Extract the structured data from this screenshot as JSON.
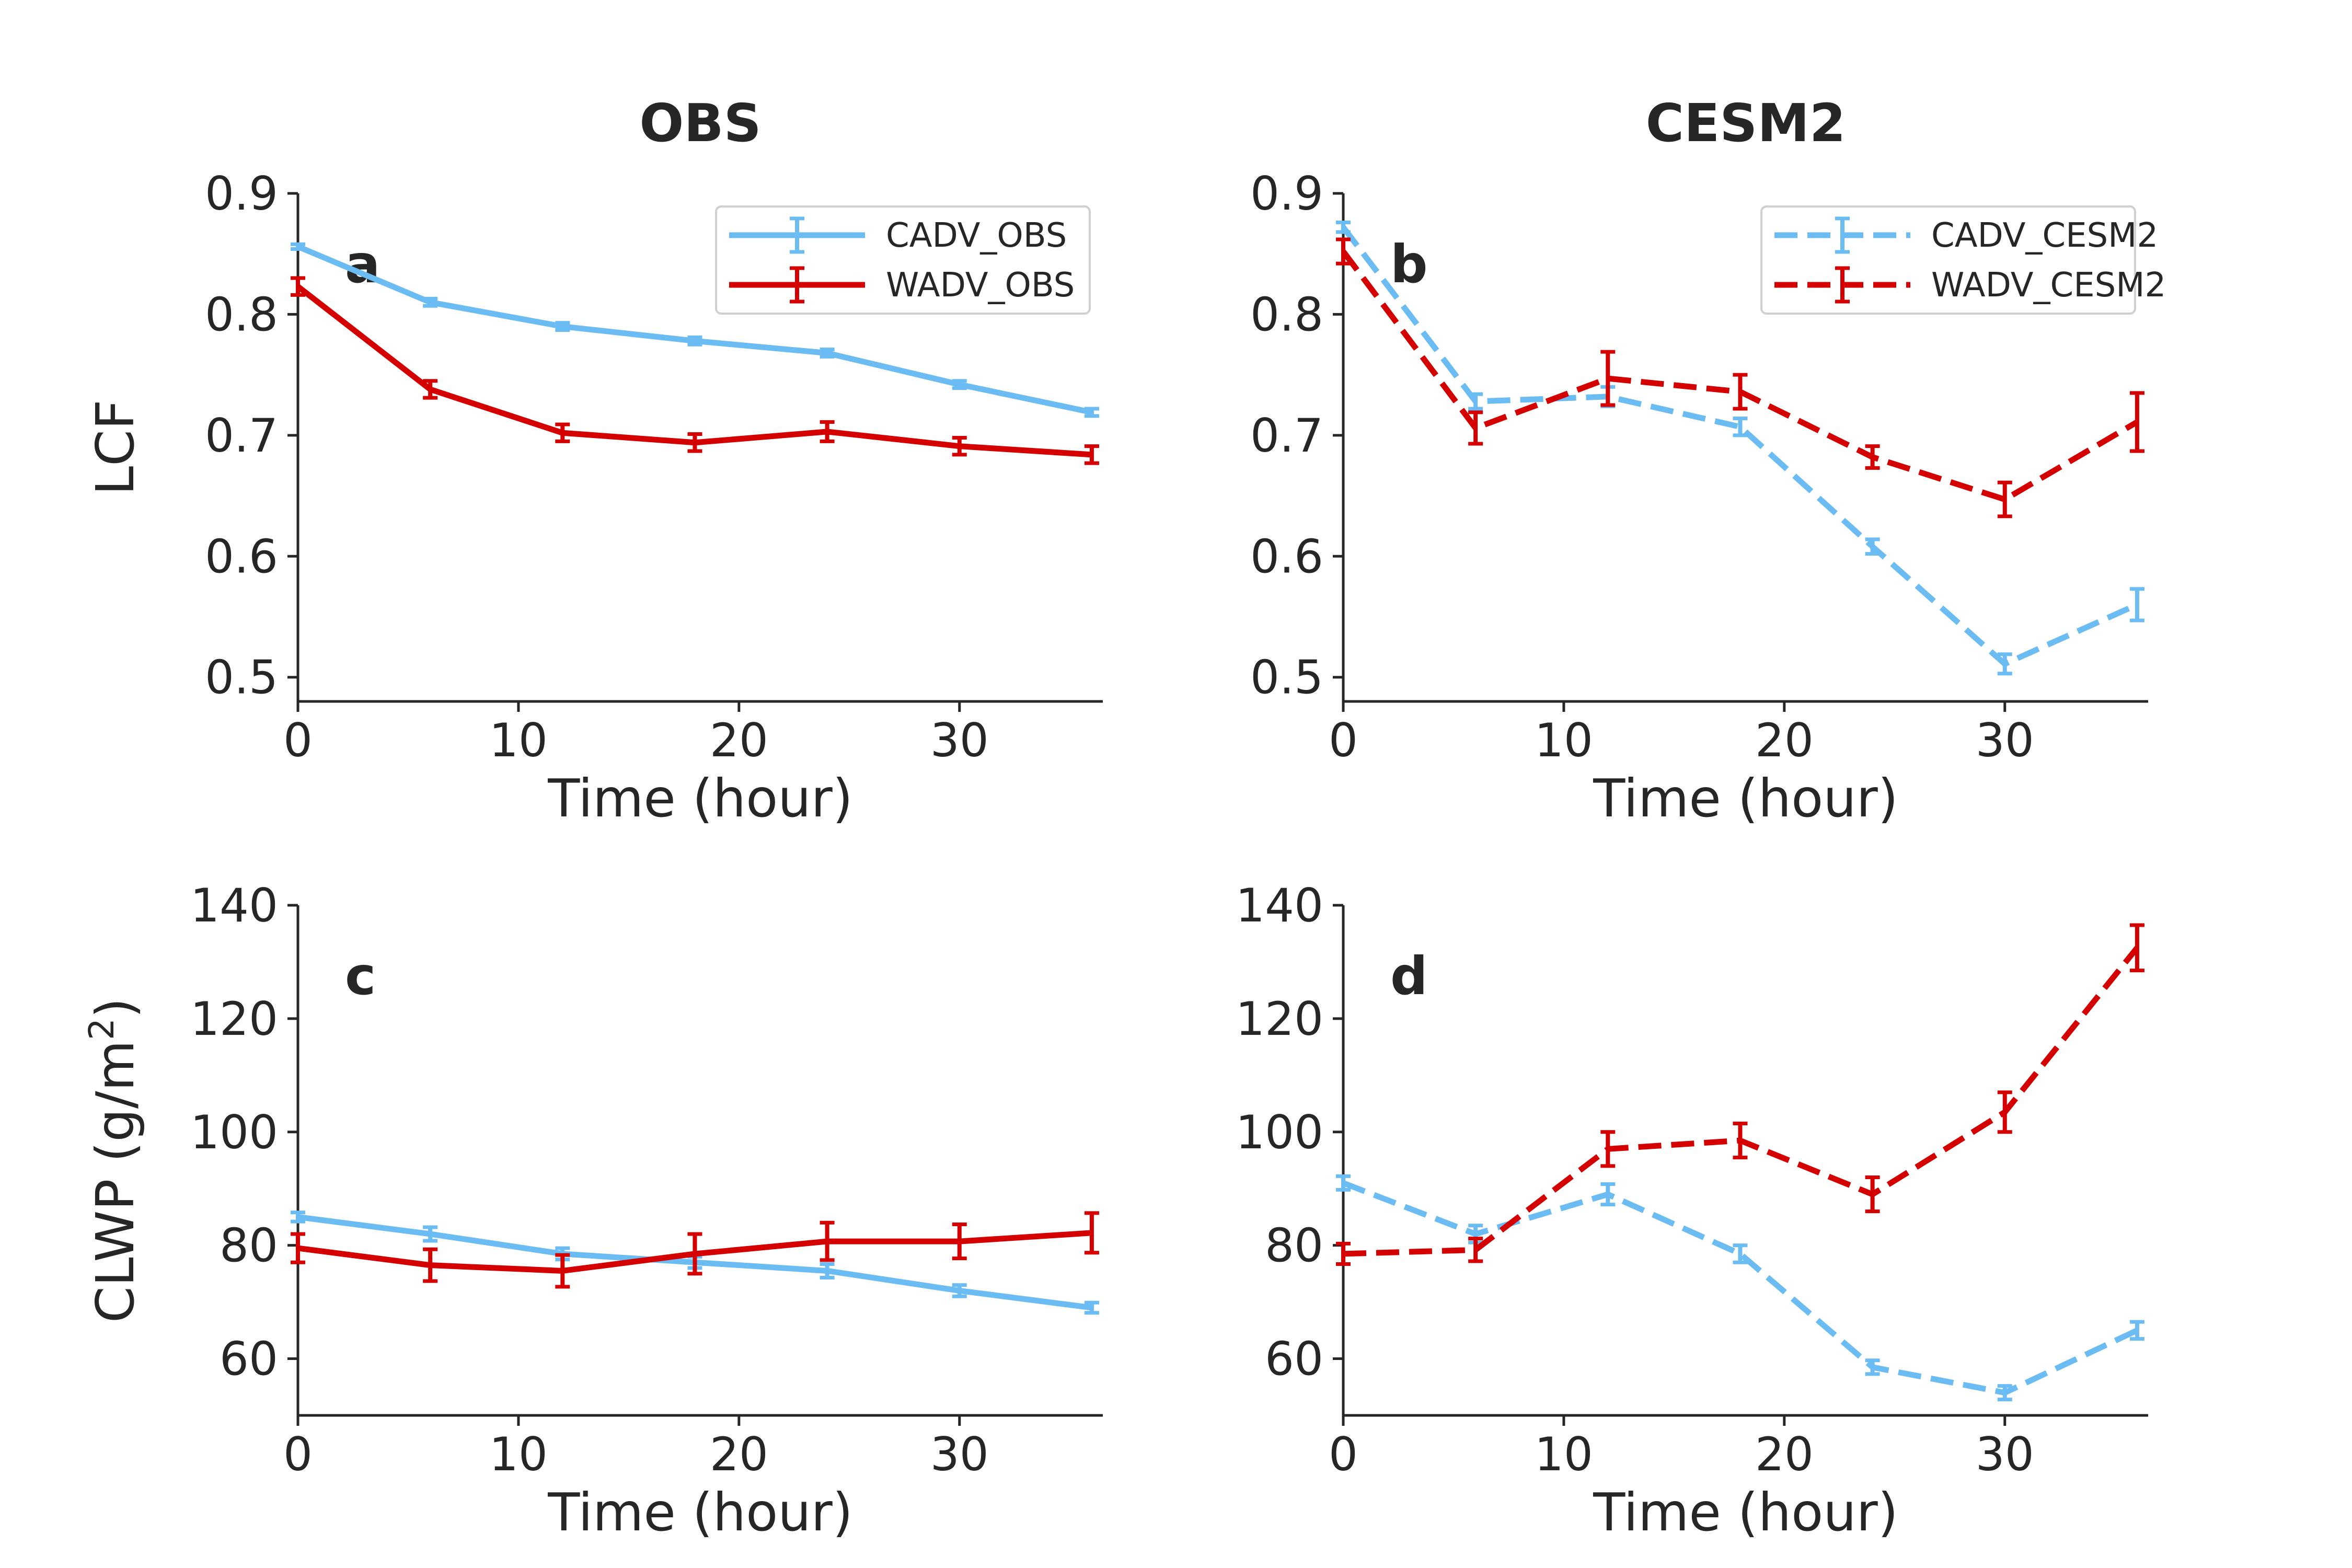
{
  "figure": {
    "column_titles": [
      "OBS",
      "CESM2"
    ],
    "colors": {
      "cadv": "#6cbcf4",
      "wadv": "#d40000",
      "axis": "#262626"
    }
  },
  "chart_data": [
    {
      "id": "a",
      "type": "line",
      "panel_letter": "a",
      "title": "",
      "xlabel": "Time (hour)",
      "ylabel": "LCF",
      "xlim": [
        0,
        36.5
      ],
      "ylim": [
        0.48,
        0.9
      ],
      "xticks": [
        0,
        10,
        20,
        30
      ],
      "yticks": [
        0.5,
        0.6,
        0.7,
        0.8,
        0.9
      ],
      "ytick_labels": [
        "0.5",
        "0.6",
        "0.7",
        "0.8",
        "0.9"
      ],
      "legend_position": "top-right",
      "x": [
        0,
        6,
        12,
        18,
        24,
        30,
        36
      ],
      "series": [
        {
          "name": "CADV_OBS",
          "style": "solid",
          "color": "#6cbcf4",
          "values": [
            0.856,
            0.81,
            0.79,
            0.778,
            0.768,
            0.742,
            0.719
          ],
          "errors": [
            0.002,
            0.003,
            0.003,
            0.003,
            0.003,
            0.003,
            0.003
          ]
        },
        {
          "name": "WADV_OBS",
          "style": "solid",
          "color": "#d40000",
          "values": [
            0.823,
            0.738,
            0.702,
            0.694,
            0.703,
            0.691,
            0.684
          ],
          "errors": [
            0.007,
            0.007,
            0.007,
            0.007,
            0.008,
            0.007,
            0.007
          ]
        }
      ]
    },
    {
      "id": "b",
      "type": "line",
      "panel_letter": "b",
      "title": "",
      "xlabel": "Time (hour)",
      "ylabel": "",
      "xlim": [
        0,
        36.5
      ],
      "ylim": [
        0.48,
        0.9
      ],
      "xticks": [
        0,
        10,
        20,
        30
      ],
      "yticks": [
        0.5,
        0.6,
        0.7,
        0.8,
        0.9
      ],
      "ytick_labels": [
        "0.5",
        "0.6",
        "0.7",
        "0.8",
        "0.9"
      ],
      "legend_position": "top-right",
      "x": [
        0,
        6,
        12,
        18,
        24,
        30,
        36
      ],
      "series": [
        {
          "name": "CADV_CESM2",
          "style": "dashed",
          "color": "#6cbcf4",
          "values": [
            0.872,
            0.728,
            0.732,
            0.707,
            0.608,
            0.511,
            0.56
          ],
          "errors": [
            0.004,
            0.006,
            0.008,
            0.007,
            0.006,
            0.008,
            0.013
          ]
        },
        {
          "name": "WADV_CESM2",
          "style": "dashed",
          "color": "#d40000",
          "values": [
            0.852,
            0.706,
            0.747,
            0.736,
            0.682,
            0.647,
            0.711
          ],
          "errors": [
            0.01,
            0.013,
            0.022,
            0.014,
            0.009,
            0.014,
            0.024
          ]
        }
      ]
    },
    {
      "id": "c",
      "type": "line",
      "panel_letter": "c",
      "title": "",
      "xlabel": "Time (hour)",
      "ylabel": "CLWP (g/m",
      "ylabel_superscript": "2",
      "ylabel_suffix": ")",
      "xlim": [
        0,
        36.5
      ],
      "ylim": [
        50,
        140
      ],
      "xticks": [
        0,
        10,
        20,
        30
      ],
      "yticks": [
        60,
        80,
        100,
        120,
        140
      ],
      "ytick_labels": [
        "60",
        "80",
        "100",
        "120",
        "140"
      ],
      "x": [
        0,
        6,
        12,
        18,
        24,
        30,
        36
      ],
      "series": [
        {
          "name": "CADV_OBS",
          "style": "solid",
          "color": "#6cbcf4",
          "values": [
            85.0,
            82.0,
            78.5,
            77.0,
            75.5,
            72.0,
            69.0
          ],
          "errors": [
            0.8,
            1.2,
            1.0,
            1.0,
            1.2,
            1.0,
            0.9
          ]
        },
        {
          "name": "WADV_OBS",
          "style": "solid",
          "color": "#d40000",
          "values": [
            79.5,
            76.5,
            75.5,
            78.5,
            80.7,
            80.7,
            82.2
          ],
          "errors": [
            2.5,
            2.8,
            2.8,
            3.5,
            3.3,
            3.0,
            3.5
          ]
        }
      ]
    },
    {
      "id": "d",
      "type": "line",
      "panel_letter": "d",
      "title": "",
      "xlabel": "Time (hour)",
      "ylabel": "",
      "xlim": [
        0,
        36.5
      ],
      "ylim": [
        50,
        140
      ],
      "xticks": [
        0,
        10,
        20,
        30
      ],
      "yticks": [
        60,
        80,
        100,
        120,
        140
      ],
      "ytick_labels": [
        "60",
        "80",
        "100",
        "120",
        "140"
      ],
      "x": [
        0,
        6,
        12,
        18,
        24,
        30,
        36
      ],
      "series": [
        {
          "name": "CADV_CESM2",
          "style": "dashed",
          "color": "#6cbcf4",
          "values": [
            91.0,
            82.0,
            89.0,
            78.5,
            58.5,
            54.0,
            65.0
          ],
          "errors": [
            1.2,
            1.5,
            1.8,
            1.5,
            1.2,
            1.2,
            1.5
          ]
        },
        {
          "name": "WADV_CESM2",
          "style": "dashed",
          "color": "#d40000",
          "values": [
            78.5,
            79.2,
            97.0,
            98.5,
            89.0,
            103.5,
            132.5
          ],
          "errors": [
            1.8,
            2.0,
            3.0,
            3.0,
            3.0,
            3.5,
            4.0
          ]
        }
      ]
    }
  ]
}
